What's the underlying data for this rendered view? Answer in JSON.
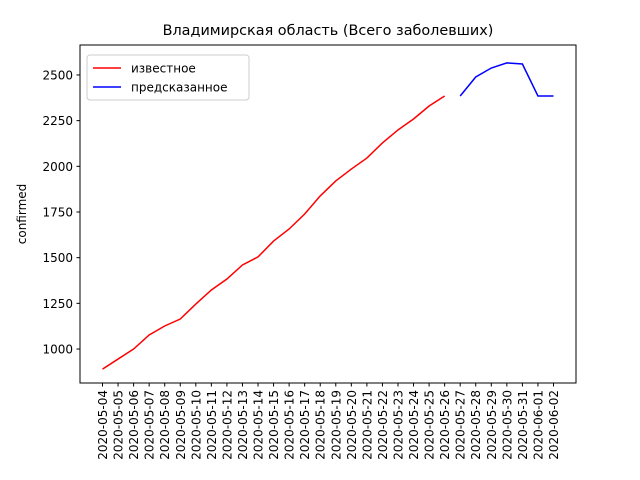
{
  "chart_data": {
    "type": "line",
    "title": "Владимирская область (Всего заболевших)",
    "y_label": "confirmed",
    "categories": [
      "2020-05-04",
      "2020-05-05",
      "2020-05-06",
      "2020-05-07",
      "2020-05-08",
      "2020-05-09",
      "2020-05-10",
      "2020-05-11",
      "2020-05-12",
      "2020-05-13",
      "2020-05-14",
      "2020-05-15",
      "2020-05-16",
      "2020-05-17",
      "2020-05-18",
      "2020-05-19",
      "2020-05-20",
      "2020-05-21",
      "2020-05-22",
      "2020-05-23",
      "2020-05-24",
      "2020-05-25",
      "2020-05-26",
      "2020-05-27",
      "2020-05-28",
      "2020-05-29",
      "2020-05-30",
      "2020-05-31",
      "2020-06-01",
      "2020-06-02"
    ],
    "series": [
      {
        "name": "известное",
        "color": "#ff0000",
        "values": [
          890,
          945,
          1000,
          1077,
          1126,
          1164,
          1246,
          1323,
          1383,
          1460,
          1504,
          1591,
          1657,
          1739,
          1838,
          1920,
          1985,
          2045,
          2128,
          2199,
          2259,
          2330,
          2385,
          null,
          null,
          null,
          null,
          null,
          null,
          null
        ]
      },
      {
        "name": "предсказанное",
        "color": "#0000ff",
        "values": [
          null,
          null,
          null,
          null,
          null,
          null,
          null,
          null,
          null,
          null,
          null,
          null,
          null,
          null,
          null,
          null,
          null,
          null,
          null,
          null,
          null,
          null,
          null,
          2385,
          2489,
          2538,
          2566,
          2560,
          2385,
          2385
        ]
      }
    ],
    "ylim": [
      814,
      2664
    ],
    "yticks": [
      1000,
      1250,
      1500,
      1750,
      2000,
      2250,
      2500
    ],
    "legend": "upper left"
  }
}
